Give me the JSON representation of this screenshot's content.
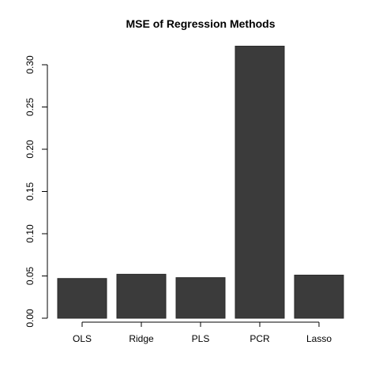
{
  "chart_data": {
    "type": "bar",
    "title": "MSE of Regression Methods",
    "xlabel": "",
    "ylabel": "",
    "categories": [
      "OLS",
      "Ridge",
      "PLS",
      "PCR",
      "Lasso"
    ],
    "values": [
      0.047,
      0.052,
      0.048,
      0.322,
      0.051
    ],
    "ylim": [
      0,
      0.3
    ],
    "yticks": [
      "0.00",
      "0.05",
      "0.10",
      "0.15",
      "0.20",
      "0.25",
      "0.30"
    ],
    "bar_color": "#3b3b3b",
    "grid": false,
    "legend": "none"
  }
}
